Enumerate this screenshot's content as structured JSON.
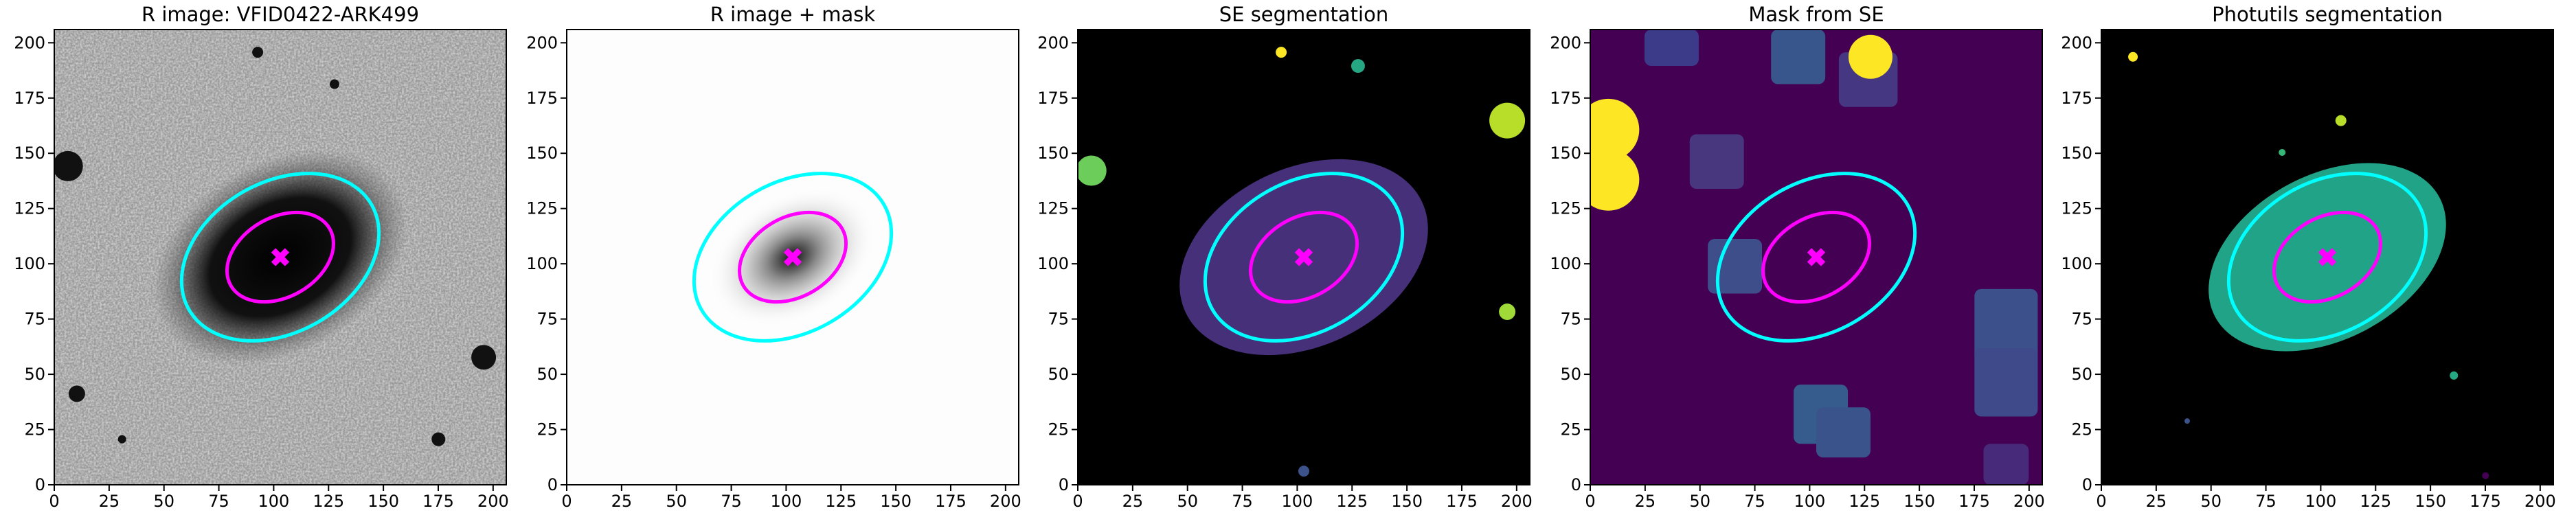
{
  "chart_data": [
    {
      "type": "image",
      "title": "R image: VFID0422-ARK499",
      "background": "#9a9a9a",
      "xlim": [
        0,
        206
      ],
      "ylim": [
        0,
        206
      ],
      "xticks": [
        0,
        25,
        50,
        75,
        100,
        125,
        150,
        175,
        200
      ],
      "yticks": [
        0,
        25,
        50,
        75,
        100,
        125,
        150,
        175,
        200
      ],
      "ellipses": [
        {
          "color": "#00ffff",
          "x": 103,
          "y": 103,
          "a": 48,
          "b": 34,
          "angle": 30
        },
        {
          "color": "#ff00ff",
          "x": 103,
          "y": 103,
          "a": 26,
          "b": 18,
          "angle": 30
        }
      ]
    },
    {
      "type": "image",
      "title": "R image + mask",
      "background": "#fdfdfd",
      "xlim": [
        0,
        206
      ],
      "ylim": [
        0,
        206
      ],
      "xticks": [
        0,
        25,
        50,
        75,
        100,
        125,
        150,
        175,
        200
      ],
      "yticks": [
        0,
        25,
        50,
        75,
        100,
        125,
        150,
        175,
        200
      ],
      "ellipses": [
        {
          "color": "#00ffff",
          "x": 103,
          "y": 103,
          "a": 48,
          "b": 34,
          "angle": 30
        },
        {
          "color": "#ff00ff",
          "x": 103,
          "y": 103,
          "a": 26,
          "b": 18,
          "angle": 30
        }
      ]
    },
    {
      "type": "image",
      "title": "SE segmentation",
      "background": "#000000",
      "xlim": [
        0,
        206
      ],
      "ylim": [
        0,
        206
      ],
      "xticks": [
        0,
        25,
        50,
        75,
        100,
        125,
        150,
        175,
        200
      ],
      "yticks": [
        0,
        25,
        50,
        75,
        100,
        125,
        150,
        175,
        200
      ],
      "ellipses": [
        {
          "color": "#00ffff",
          "x": 103,
          "y": 103,
          "a": 48,
          "b": 34,
          "angle": 30
        },
        {
          "color": "#ff00ff",
          "x": 103,
          "y": 103,
          "a": 26,
          "b": 18,
          "angle": 30
        }
      ]
    },
    {
      "type": "image",
      "title": "Mask from SE",
      "background": "#440154",
      "xlim": [
        0,
        206
      ],
      "ylim": [
        0,
        206
      ],
      "xticks": [
        0,
        25,
        50,
        75,
        100,
        125,
        150,
        175,
        200
      ],
      "yticks": [
        0,
        25,
        50,
        75,
        100,
        125,
        150,
        175,
        200
      ],
      "ellipses": [
        {
          "color": "#00ffff",
          "x": 103,
          "y": 103,
          "a": 48,
          "b": 34,
          "angle": 30
        },
        {
          "color": "#ff00ff",
          "x": 103,
          "y": 103,
          "a": 26,
          "b": 18,
          "angle": 30
        }
      ]
    },
    {
      "type": "image",
      "title": "Photutils segmentation",
      "background": "#000000",
      "xlim": [
        0,
        206
      ],
      "ylim": [
        0,
        206
      ],
      "xticks": [
        0,
        25,
        50,
        75,
        100,
        125,
        150,
        175,
        200
      ],
      "yticks": [
        0,
        25,
        50,
        75,
        100,
        125,
        150,
        175,
        200
      ],
      "ellipses": [
        {
          "color": "#00ffff",
          "x": 103,
          "y": 103,
          "a": 48,
          "b": 34,
          "angle": 30
        },
        {
          "color": "#ff00ff",
          "x": 103,
          "y": 103,
          "a": 26,
          "b": 18,
          "angle": 30
        }
      ]
    }
  ]
}
